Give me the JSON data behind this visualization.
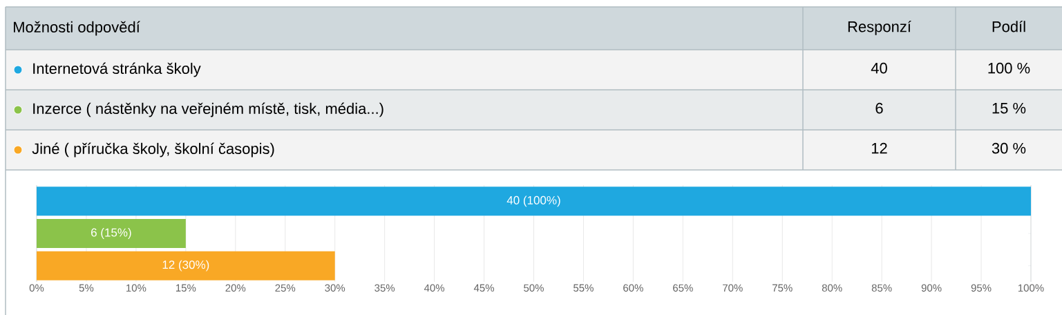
{
  "chart_data": {
    "type": "bar",
    "orientation": "horizontal",
    "categories": [
      null,
      null,
      null
    ],
    "values": [
      100,
      15,
      30
    ],
    "colors": [
      "#1fa8e0",
      "#8bc34a",
      "#f9a825"
    ],
    "value_labels": [
      "40 (100%)",
      "6 (15%)",
      "12 (30%)"
    ],
    "annotations": [
      "Možnosti odpovědí",
      "Responzí",
      "Podíl",
      "Internetová stránka školy",
      "40",
      "100 %",
      "Inzerce ( nástěnky na veřejném místě, tisk, média...)",
      "6",
      "15 %",
      "Jiné ( příručka školy, školní časopis)",
      "12",
      "30 %"
    ],
    "xlim": [
      0,
      100
    ],
    "xticks": [
      {
        "value": 0,
        "label": "0%"
      },
      {
        "value": 5,
        "label": "5%"
      },
      {
        "value": 10,
        "label": "10%"
      },
      {
        "value": 15,
        "label": "15%"
      },
      {
        "value": 20,
        "label": "20%"
      },
      {
        "value": 25,
        "label": "25%"
      },
      {
        "value": 30,
        "label": "30%"
      },
      {
        "value": 35,
        "label": "35%"
      },
      {
        "value": 40,
        "label": "40%"
      },
      {
        "value": 45,
        "label": "45%"
      },
      {
        "value": 50,
        "label": "50%"
      },
      {
        "value": 55,
        "label": "55%"
      },
      {
        "value": 60,
        "label": "60%"
      },
      {
        "value": 65,
        "label": "65%"
      },
      {
        "value": 70,
        "label": "70%"
      },
      {
        "value": 75,
        "label": "75%"
      },
      {
        "value": 80,
        "label": "80%"
      },
      {
        "value": 85,
        "label": "85%"
      },
      {
        "value": 90,
        "label": "90%"
      },
      {
        "value": 95,
        "label": "95%"
      },
      {
        "value": 100,
        "label": "100%"
      }
    ],
    "grid": "x",
    "tick_labels": "x"
  }
}
